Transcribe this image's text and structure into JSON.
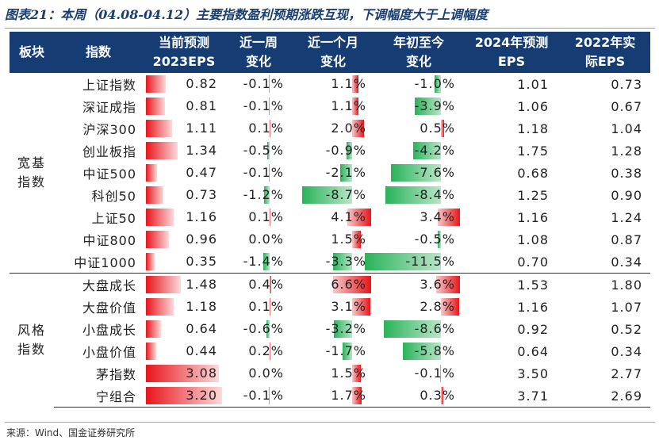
{
  "title": "图表21：本周（04.08-04.12）主要指数盈利预期涨跌互现，下调幅度大于上调幅度",
  "headers": {
    "sector": "板块",
    "index": "指数",
    "eps2023": [
      "当前预测",
      "2023EPS"
    ],
    "week": [
      "近一周",
      "变化"
    ],
    "month": [
      "近一个月",
      "变化"
    ],
    "ytd": [
      "年初至今",
      "变化"
    ],
    "eps2024": [
      "2024年预测",
      "EPS"
    ],
    "eps2022": [
      "2022年实",
      "际EPS"
    ]
  },
  "groups": [
    {
      "name_lines": [
        "宽基",
        "指数"
      ],
      "row_count": 9
    },
    {
      "name_lines": [
        "风格",
        "指数"
      ],
      "row_count": 6
    }
  ],
  "rows": [
    {
      "name": "上证指数",
      "eps2023": 0.82,
      "week": -0.1,
      "month": 1.1,
      "ytd": -1.0,
      "eps2024": 1.01,
      "eps2022": 0.73
    },
    {
      "name": "深证成指",
      "eps2023": 0.81,
      "week": -0.1,
      "month": 1.1,
      "ytd": -3.9,
      "eps2024": 1.06,
      "eps2022": 0.67
    },
    {
      "name": "沪深300",
      "eps2023": 1.11,
      "week": 0.1,
      "month": 2.0,
      "ytd": 0.5,
      "eps2024": 1.18,
      "eps2022": 1.04
    },
    {
      "name": "创业板指",
      "eps2023": 1.34,
      "week": -0.5,
      "month": -0.9,
      "ytd": -4.2,
      "eps2024": 1.75,
      "eps2022": 1.28
    },
    {
      "name": "中证500",
      "eps2023": 0.47,
      "week": -0.1,
      "month": -2.1,
      "ytd": -7.6,
      "eps2024": 0.68,
      "eps2022": 0.38
    },
    {
      "name": "科创50",
      "eps2023": 0.73,
      "week": -1.2,
      "month": -8.7,
      "ytd": -8.4,
      "eps2024": 1.25,
      "eps2022": 0.9
    },
    {
      "name": "上证50",
      "eps2023": 1.16,
      "week": 0.1,
      "month": 4.1,
      "ytd": 3.4,
      "eps2024": 1.16,
      "eps2022": 1.24
    },
    {
      "name": "中证800",
      "eps2023": 0.96,
      "week": 0.0,
      "month": 1.5,
      "ytd": -0.5,
      "eps2024": 1.08,
      "eps2022": 0.87
    },
    {
      "name": "中证1000",
      "eps2023": 0.35,
      "week": -1.4,
      "month": -3.3,
      "ytd": -11.5,
      "eps2024": 0.7,
      "eps2022": 0.34
    },
    {
      "name": "大盘成长",
      "eps2023": 1.48,
      "week": 0.4,
      "month": 6.6,
      "ytd": 3.6,
      "eps2024": 1.53,
      "eps2022": 1.8
    },
    {
      "name": "大盘价值",
      "eps2023": 1.18,
      "week": 0.1,
      "month": 3.1,
      "ytd": 2.8,
      "eps2024": 1.16,
      "eps2022": 1.07
    },
    {
      "name": "小盘成长",
      "eps2023": 0.64,
      "week": -0.6,
      "month": -3.2,
      "ytd": -8.6,
      "eps2024": 0.92,
      "eps2022": 0.52
    },
    {
      "name": "小盘价值",
      "eps2023": 0.44,
      "week": 0.2,
      "month": -1.7,
      "ytd": -5.8,
      "eps2024": 0.64,
      "eps2022": 0.34
    },
    {
      "name": "茅指数",
      "eps2023": 3.08,
      "week": 0.0,
      "month": 1.5,
      "ytd": -0.1,
      "eps2024": 3.5,
      "eps2022": 2.77
    },
    {
      "name": "宁组合",
      "eps2023": 3.2,
      "week": -0.1,
      "month": 1.7,
      "ytd": 0.3,
      "eps2024": 3.71,
      "eps2022": 2.69
    }
  ],
  "colors": {
    "header_bg": "#163d73",
    "positive": "#e8151b",
    "negative": "#29b35a"
  },
  "source": "来源：Wind、国金证券研究所"
}
